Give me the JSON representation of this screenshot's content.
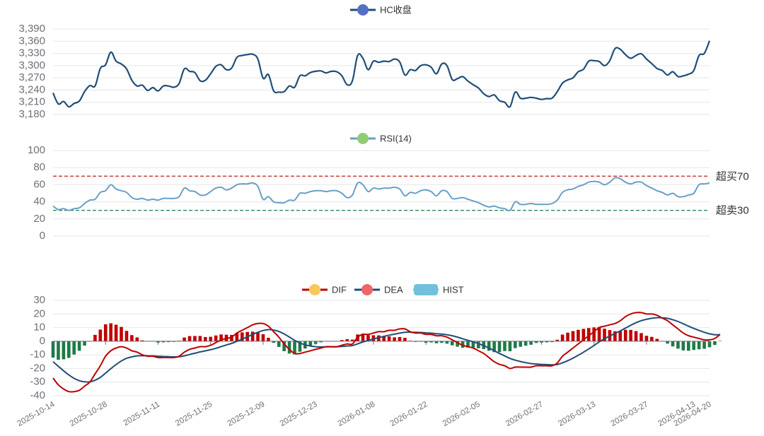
{
  "chart_data": [
    {
      "type": "line",
      "legend": [
        "HC收盘"
      ],
      "series": [
        {
          "name": "HC收盘",
          "color": "#1f4e79",
          "legend_color": "#5470c6"
        }
      ],
      "y_ticks": [
        "3,390",
        "3,360",
        "3,330",
        "3,300",
        "3,270",
        "3,240",
        "3,210",
        "3,180"
      ],
      "ylim": [
        3180,
        3390
      ],
      "x_labels": [
        "2025-10-14",
        "2025-10-28",
        "2025-11-11",
        "2025-11-25",
        "2025-12-09",
        "2025-12-23",
        "2026-01-08",
        "2026-01-22",
        "2026-02-05",
        "2026-02-27",
        "2026-03-13",
        "2026-03-27",
        "2026-04-13",
        "2026-04-20"
      ],
      "close": [
        3233,
        3206,
        3212,
        3199,
        3207,
        3213,
        3236,
        3251,
        3250,
        3293,
        3302,
        3333,
        3311,
        3304,
        3292,
        3264,
        3250,
        3252,
        3239,
        3246,
        3238,
        3250,
        3250,
        3247,
        3256,
        3292,
        3286,
        3283,
        3263,
        3264,
        3280,
        3298,
        3302,
        3290,
        3294,
        3320,
        3325,
        3327,
        3328,
        3316,
        3269,
        3278,
        3238,
        3235,
        3236,
        3250,
        3247,
        3275,
        3275,
        3283,
        3286,
        3287,
        3282,
        3286,
        3285,
        3275,
        3253,
        3263,
        3325,
        3318,
        3290,
        3311,
        3308,
        3311,
        3310,
        3316,
        3309,
        3277,
        3290,
        3288,
        3300,
        3302,
        3296,
        3280,
        3304,
        3300,
        3266,
        3268,
        3273,
        3262,
        3253,
        3245,
        3231,
        3224,
        3228,
        3214,
        3210,
        3199,
        3235,
        3220,
        3220,
        3222,
        3220,
        3217,
        3219,
        3220,
        3236,
        3257,
        3265,
        3270,
        3285,
        3291,
        3311,
        3312,
        3310,
        3300,
        3312,
        3342,
        3340,
        3327,
        3318,
        3325,
        3329,
        3316,
        3305,
        3293,
        3288,
        3277,
        3285,
        3273,
        3275,
        3279,
        3288,
        3325,
        3330,
        3361
      ]
    },
    {
      "type": "line",
      "legend": [
        "RSI(14)"
      ],
      "series": [
        {
          "name": "RSI(14)",
          "color": "#6a9fc6",
          "legend_color": "#91cc75"
        }
      ],
      "y_ticks": [
        "100",
        "80",
        "60",
        "40",
        "20",
        "0"
      ],
      "ylim": [
        0,
        100
      ],
      "reference_lines": [
        {
          "value": 70,
          "label": "超买70",
          "color": "#c23531"
        },
        {
          "value": 30,
          "label": "超卖30",
          "color": "#2e8b57"
        }
      ],
      "rsi": [
        35,
        31,
        32,
        30,
        32,
        33,
        38,
        42,
        43,
        51,
        53,
        60,
        55,
        53,
        51,
        45,
        43,
        44,
        42,
        43,
        42,
        44,
        44,
        44,
        46,
        56,
        53,
        52,
        48,
        48,
        52,
        56,
        57,
        54,
        56,
        60,
        61,
        61,
        62,
        58,
        43,
        46,
        40,
        39,
        39,
        42,
        42,
        50,
        50,
        52,
        53,
        53,
        52,
        53,
        53,
        50,
        45,
        48,
        62,
        60,
        52,
        56,
        55,
        56,
        56,
        57,
        55,
        47,
        51,
        50,
        53,
        54,
        52,
        47,
        53,
        52,
        44,
        44,
        45,
        43,
        41,
        39,
        36,
        34,
        35,
        33,
        32,
        30,
        40,
        37,
        37,
        38,
        37,
        37,
        37,
        38,
        42,
        51,
        54,
        55,
        58,
        60,
        63,
        64,
        63,
        60,
        63,
        68,
        67,
        63,
        61,
        63,
        63,
        59,
        56,
        53,
        51,
        48,
        50,
        46,
        46,
        48,
        50,
        60,
        61,
        62
      ]
    },
    {
      "type": "bar+line",
      "legend": [
        "DIF",
        "DEA",
        "HIST"
      ],
      "series": [
        {
          "name": "DIF",
          "color": "#c00000",
          "legend_color": "#fac858"
        },
        {
          "name": "DEA",
          "color": "#1f4e79",
          "legend_color": "#ee6666"
        },
        {
          "name": "HIST",
          "color": "#73c0de",
          "legend_color": "#73c0de"
        }
      ],
      "hist_up_color": "#c00000",
      "hist_down_color": "#1e7a46",
      "y_ticks": [
        "30",
        "20",
        "10",
        "0",
        "-10",
        "-20",
        "-30",
        "-40"
      ],
      "ylim": [
        -40,
        30
      ],
      "dif": [
        -27,
        -32,
        -35,
        -37,
        -37,
        -36,
        -33,
        -30,
        -24,
        -18,
        -11,
        -7,
        -5,
        -4,
        -5,
        -7,
        -8,
        -10,
        -11,
        -11,
        -12,
        -12,
        -12,
        -12,
        -11,
        -8,
        -6,
        -5,
        -4,
        -4,
        -3,
        -1,
        1,
        2,
        3,
        6,
        8,
        10,
        12,
        13,
        13,
        11,
        7,
        3,
        -2,
        -6,
        -9,
        -9,
        -8,
        -7,
        -6,
        -5,
        -4,
        -4,
        -4,
        -3,
        -2,
        -2,
        3,
        5,
        5,
        6,
        7,
        7,
        8,
        8,
        9,
        9,
        7,
        6,
        6,
        5,
        5,
        4,
        4,
        3,
        1,
        -1,
        -3,
        -4,
        -5,
        -7,
        -9,
        -12,
        -15,
        -17,
        -18,
        -20,
        -19,
        -19,
        -19,
        -19,
        -18,
        -18,
        -18,
        -18,
        -16,
        -11,
        -8,
        -5,
        -2,
        1,
        4,
        7,
        10,
        11,
        12,
        13,
        15,
        18,
        20,
        21,
        21,
        20,
        20,
        19,
        17,
        15,
        12,
        9,
        6,
        4,
        3,
        2,
        1,
        1,
        2,
        5
      ]
    }
  ]
}
